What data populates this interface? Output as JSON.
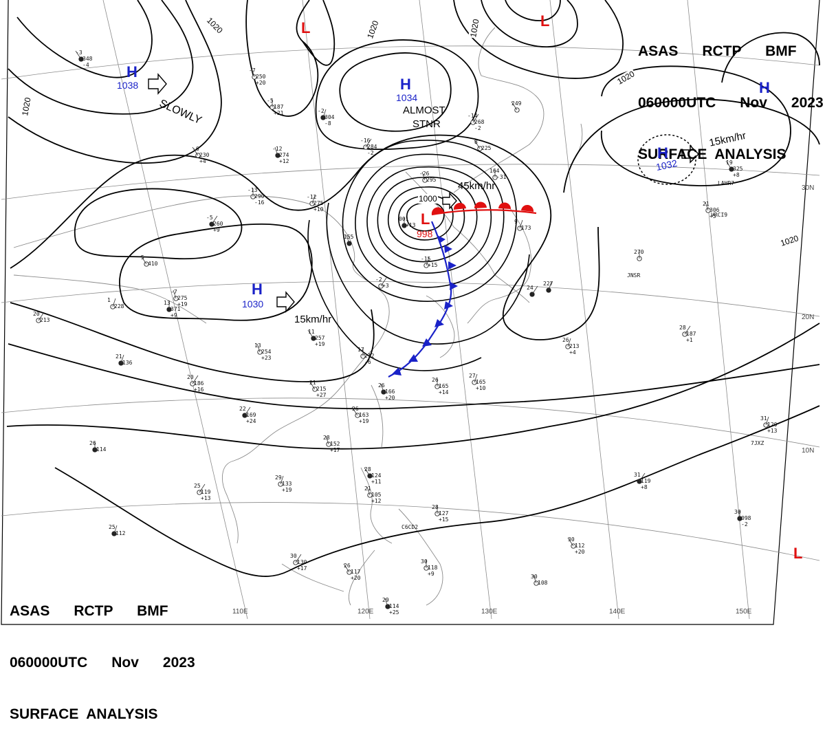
{
  "header": {
    "line1": "ASAS      RCTP      BMF",
    "line2": "060000UTC      Nov      2023",
    "line3": "SURFACE  ANALYSIS"
  },
  "footer": {
    "line1": "ASAS      RCTP      BMF",
    "line2": "060000UTC      Nov      2023",
    "line3": "SURFACE  ANALYSIS"
  },
  "systems": {
    "high_1038": {
      "symbol": "H",
      "pressure": "1038",
      "motion": "SLOWLY"
    },
    "high_1034": {
      "symbol": "H",
      "pressure": "1034",
      "motion_1": "ALMOST",
      "motion_2": "STNR"
    },
    "high_1032": {
      "symbol": "H",
      "pressure": "1032",
      "motion": "15km/hr"
    },
    "high_1030": {
      "symbol": "H",
      "pressure": "1030",
      "motion": "15km/hr"
    },
    "high_east": {
      "symbol": "H"
    },
    "low_998": {
      "symbol": "L",
      "pressure": "998",
      "motion": "45km/hr"
    },
    "low_north": {
      "symbol": "L"
    },
    "low_ne": {
      "symbol": "L"
    },
    "low_se": {
      "symbol": "L"
    }
  },
  "isobars": {
    "a": "1020",
    "b": "1020",
    "c": "1020",
    "d": "1020",
    "e": "1020",
    "f": "1000"
  },
  "latitude_labels": [
    "30N",
    "20N",
    "10N"
  ],
  "longitude_labels": [
    "110E",
    "120E",
    "130E",
    "140E",
    "150E"
  ],
  "stations": [
    [
      "-3",
      "348",
      "-4"
    ],
    [
      "-7",
      "250",
      "+20"
    ],
    [
      "-5",
      "187",
      "+21"
    ],
    [
      "-2",
      "304",
      "-8"
    ],
    [
      "-16",
      "284",
      "-2"
    ],
    [
      "-6",
      "230",
      "+4"
    ],
    [
      "-12",
      "274",
      "+12"
    ],
    [
      "-13",
      "290",
      "-16"
    ],
    [
      "-12",
      "275",
      "+10"
    ],
    [
      "-5",
      "260",
      "+9"
    ],
    [
      "5",
      "410"
    ],
    [
      "-7",
      "275",
      "+19"
    ],
    [
      "13",
      "371",
      "+9"
    ],
    [
      "1",
      "228"
    ],
    [
      "20",
      "213"
    ],
    [
      "11",
      "257",
      "+19"
    ],
    [
      "13",
      "254",
      "+23"
    ],
    [
      "17",
      "212",
      "-6"
    ],
    [
      "21",
      "136"
    ],
    [
      "20",
      "186",
      "+16"
    ],
    [
      "21",
      "215",
      "+27"
    ],
    [
      "26",
      "166",
      "+20"
    ],
    [
      "26",
      "165",
      "+14"
    ],
    [
      "27",
      "165",
      "+10"
    ],
    [
      "22",
      "169",
      "+24"
    ],
    [
      "26",
      "163",
      "+19"
    ],
    [
      "28",
      "152",
      "+17"
    ],
    [
      "26",
      "114"
    ],
    [
      "29",
      "133",
      "+19"
    ],
    [
      "25",
      "119",
      "+13"
    ],
    [
      "28",
      "124",
      "+11"
    ],
    [
      "21",
      "105",
      "+12"
    ],
    [
      "28",
      "127",
      "+15"
    ],
    [
      "25",
      "112"
    ],
    [
      "30",
      "130",
      "+17"
    ],
    [
      "26",
      "117",
      "+20"
    ],
    [
      "29",
      "114",
      "+25"
    ],
    [
      "30",
      "118",
      "+9"
    ],
    [
      "31",
      "120",
      "+13"
    ],
    [
      "31",
      "119",
      "+8"
    ],
    [
      "30",
      "112",
      "+20"
    ],
    [
      "30",
      "108"
    ],
    [
      "30",
      "098",
      "-2"
    ],
    [
      "26",
      "213",
      "+4"
    ],
    [
      "28",
      "187",
      "+1"
    ],
    [
      "19",
      "325",
      "+8"
    ],
    [
      "21",
      "306",
      "+5"
    ],
    [
      "270"
    ],
    [
      "227"
    ],
    [
      "-14",
      "268",
      "-2"
    ],
    [
      "249"
    ],
    [
      "155"
    ],
    [
      "164",
      "-31"
    ],
    [
      "9",
      "173"
    ],
    [
      "24"
    ],
    [
      "8",
      "225"
    ],
    [
      "-26",
      "295"
    ],
    [
      "001",
      "+13"
    ],
    [
      "-15",
      "+15"
    ],
    [
      "-2",
      "+3"
    ]
  ],
  "station_ids": [
    "LAHR7",
    "VRCI9",
    "JNSR",
    "7JXZ",
    "C6CD2"
  ],
  "colors": {
    "high": "#1a22c8",
    "low": "#e01010",
    "isobar": "#000000",
    "grid": "#8a8a8a",
    "coast": "#8a8a8a",
    "cold_front": "#1a22c8",
    "warm_front": "#e01010"
  }
}
